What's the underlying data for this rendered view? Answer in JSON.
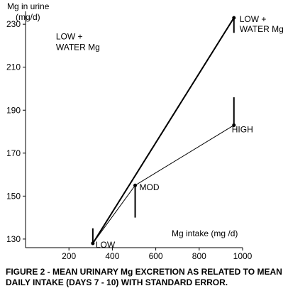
{
  "chart_data": {
    "type": "line",
    "ylabel_lines": [
      "Mg in urine",
      "(mg/d)"
    ],
    "xlabel": "Mg intake (mg /d)",
    "xlim": [
      0,
      1000
    ],
    "ylim": [
      126,
      236
    ],
    "x_ticks": [
      200,
      400,
      600,
      800,
      1000
    ],
    "y_ticks": [
      130,
      150,
      170,
      190,
      210,
      230
    ],
    "grid": false,
    "points": [
      {
        "id": "low",
        "label": "LOW",
        "x": 310,
        "y": 128,
        "err": 7
      },
      {
        "id": "mod",
        "label": "MOD",
        "x": 505,
        "y": 155,
        "err": 15
      },
      {
        "id": "high",
        "label": "HIGH",
        "x": 960,
        "y": 183,
        "err": 13
      },
      {
        "id": "low-water",
        "label_lines": [
          "LOW +",
          "WATER Mg"
        ],
        "x": 960,
        "y": 233,
        "err": 7
      }
    ],
    "series": [
      {
        "id": "diet-series",
        "path": [
          "low",
          "mod",
          "high"
        ]
      },
      {
        "id": "water-series",
        "path": [
          "low",
          "low-water"
        ]
      }
    ],
    "annotations": [
      {
        "id": "low-water-note",
        "lines": [
          "LOW +",
          "WATER Mg"
        ],
        "x": 140,
        "y": 223
      }
    ]
  },
  "caption": "FIGURE 2 -  MEAN URINARY Mg EXCRETION AS RELATED TO MEAN DAILY INTAKE (DAYS 7 - 10) WITH STANDARD ERROR."
}
